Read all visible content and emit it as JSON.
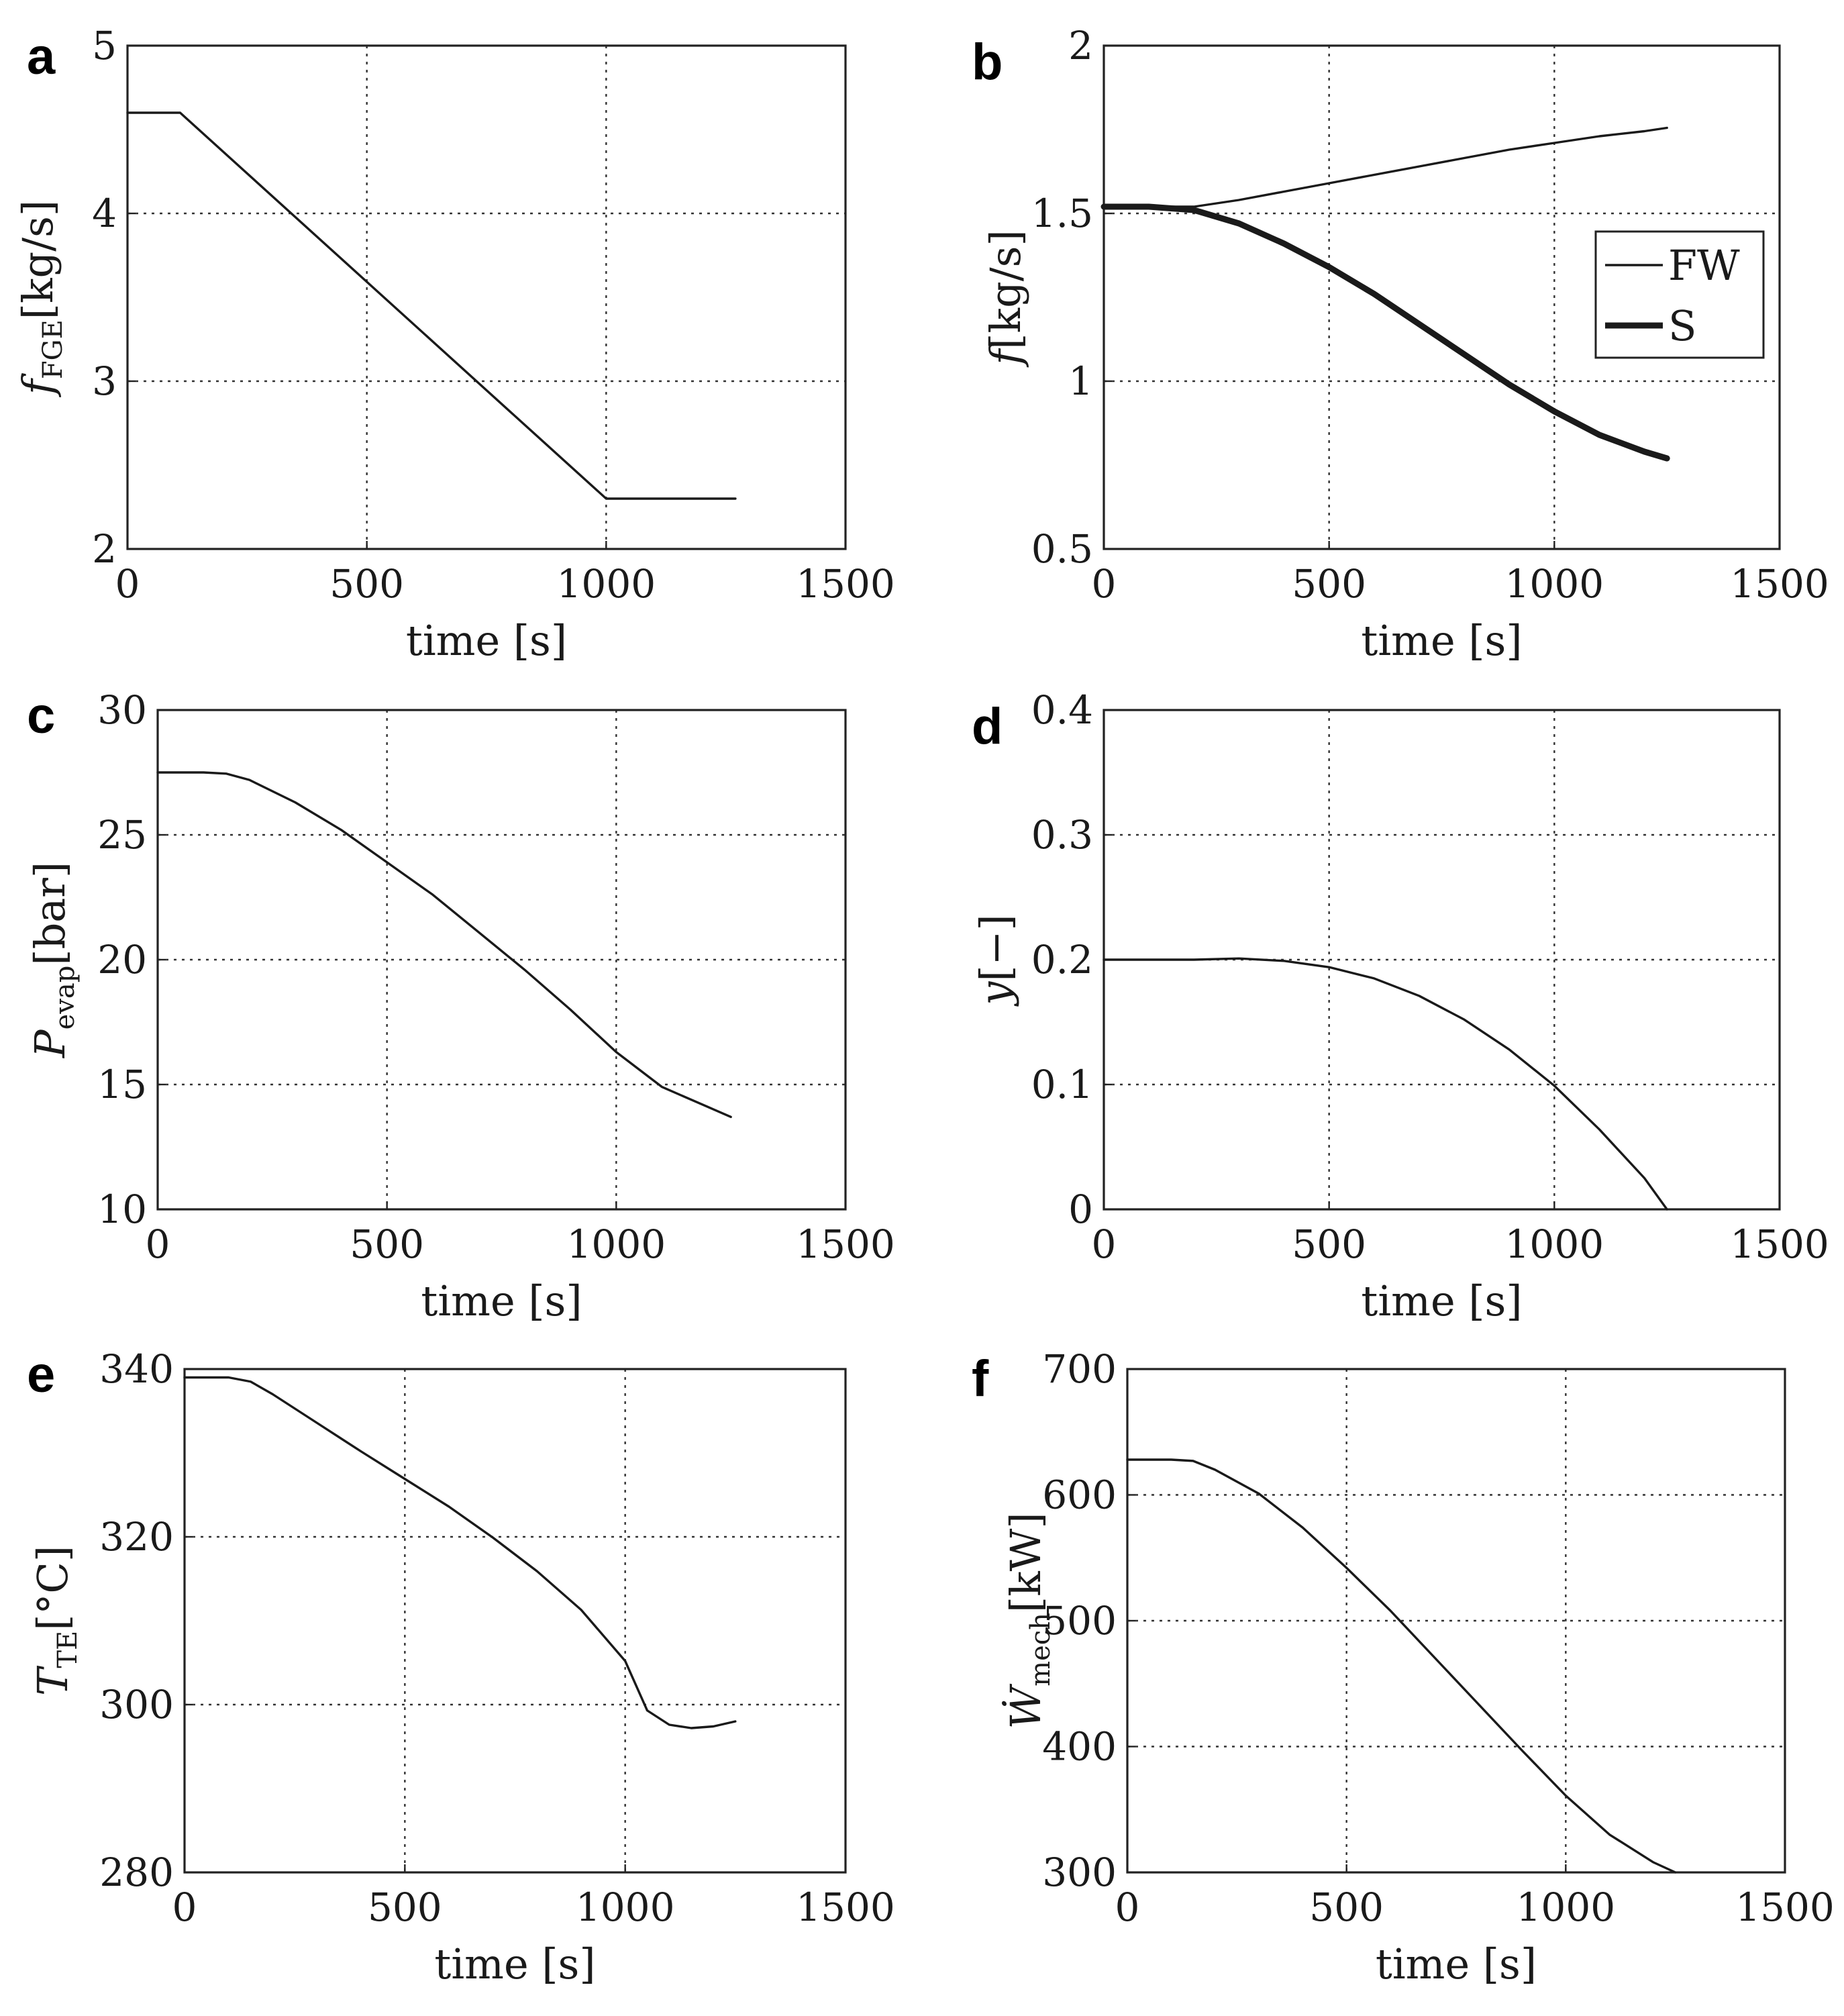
{
  "figure": {
    "shared_xlabel": "time [s]"
  },
  "chart_data": [
    {
      "id": "a",
      "panel_label": "a",
      "type": "line",
      "xlabel": "time [s]",
      "ylabel": {
        "base": "f",
        "sub": "FGE",
        "rest": "[kg/s]"
      },
      "xlim": [
        0,
        1500
      ],
      "ylim": [
        2,
        5
      ],
      "xticks": [
        0,
        500,
        1000,
        1500
      ],
      "yticks": [
        2,
        3,
        4,
        5
      ],
      "grid": true,
      "series": [
        {
          "name": "f_FGE",
          "weight": "thin",
          "x": [
            0,
            110,
            1000,
            1270
          ],
          "y": [
            4.6,
            4.6,
            2.3,
            2.3
          ]
        }
      ]
    },
    {
      "id": "b",
      "panel_label": "b",
      "type": "line",
      "xlabel": "time [s]",
      "ylabel": {
        "base": "f",
        "sub": "",
        "rest": "[kg/s]"
      },
      "xlim": [
        0,
        1500
      ],
      "ylim": [
        0.5,
        2
      ],
      "xticks": [
        0,
        500,
        1000,
        1500
      ],
      "yticks": [
        0.5,
        1,
        1.5,
        2
      ],
      "grid": true,
      "legend": {
        "position": "right",
        "entries": [
          "FW",
          "S"
        ]
      },
      "series": [
        {
          "name": "FW",
          "weight": "thin",
          "x": [
            0,
            100,
            200,
            300,
            400,
            500,
            600,
            700,
            800,
            900,
            1000,
            1100,
            1200,
            1250
          ],
          "y": [
            1.52,
            1.52,
            1.52,
            1.54,
            1.565,
            1.59,
            1.615,
            1.64,
            1.665,
            1.69,
            1.71,
            1.73,
            1.745,
            1.755
          ]
        },
        {
          "name": "S",
          "weight": "thick",
          "x": [
            0,
            100,
            200,
            300,
            400,
            500,
            600,
            700,
            800,
            900,
            1000,
            1100,
            1200,
            1250
          ],
          "y": [
            1.52,
            1.52,
            1.51,
            1.47,
            1.41,
            1.34,
            1.26,
            1.17,
            1.08,
            0.99,
            0.91,
            0.84,
            0.79,
            0.77
          ]
        }
      ]
    },
    {
      "id": "c",
      "panel_label": "c",
      "type": "line",
      "xlabel": "time [s]",
      "ylabel": {
        "base": "P",
        "sub": "evap",
        "rest": "[bar]"
      },
      "xlim": [
        0,
        1500
      ],
      "ylim": [
        10,
        30
      ],
      "xticks": [
        0,
        500,
        1000,
        1500
      ],
      "yticks": [
        10,
        15,
        20,
        25,
        30
      ],
      "grid": true,
      "series": [
        {
          "name": "P_evap",
          "weight": "thin",
          "x": [
            0,
            100,
            150,
            200,
            300,
            400,
            500,
            600,
            700,
            800,
            900,
            1000,
            1100,
            1200,
            1250
          ],
          "y": [
            27.5,
            27.5,
            27.45,
            27.2,
            26.3,
            25.2,
            23.9,
            22.6,
            21.1,
            19.6,
            18.0,
            16.3,
            14.9,
            14.1,
            13.7
          ]
        }
      ]
    },
    {
      "id": "d",
      "panel_label": "d",
      "type": "line",
      "xlabel": "time [s]",
      "ylabel": {
        "base": "y",
        "sub": "",
        "rest": "[−]"
      },
      "xlim": [
        0,
        1500
      ],
      "ylim": [
        0,
        0.4
      ],
      "xticks": [
        0,
        500,
        1000,
        1500
      ],
      "yticks": [
        0,
        0.1,
        0.2,
        0.3,
        0.4
      ],
      "grid": true,
      "series": [
        {
          "name": "y",
          "weight": "thin",
          "x": [
            0,
            100,
            200,
            300,
            400,
            500,
            600,
            700,
            800,
            900,
            1000,
            1100,
            1200,
            1250
          ],
          "y": [
            0.2,
            0.2,
            0.2,
            0.201,
            0.199,
            0.194,
            0.185,
            0.171,
            0.152,
            0.128,
            0.099,
            0.064,
            0.025,
            0.0
          ]
        }
      ]
    },
    {
      "id": "e",
      "panel_label": "e",
      "type": "line",
      "xlabel": "time [s]",
      "ylabel": {
        "base": "T",
        "sub": "TE",
        "rest": "[°C]"
      },
      "xlim": [
        0,
        1500
      ],
      "ylim": [
        280,
        340
      ],
      "xticks": [
        0,
        500,
        1000,
        1500
      ],
      "yticks": [
        280,
        300,
        320,
        340
      ],
      "grid": true,
      "series": [
        {
          "name": "T_TE",
          "weight": "thin",
          "x": [
            0,
            100,
            150,
            200,
            300,
            400,
            500,
            600,
            700,
            800,
            900,
            1000,
            1050,
            1100,
            1150,
            1200,
            1250
          ],
          "y": [
            339,
            339,
            338.5,
            337,
            333.6,
            330.2,
            326.9,
            323.6,
            319.9,
            315.9,
            311.3,
            305.2,
            299.3,
            297.6,
            297.2,
            297.4,
            298
          ]
        }
      ]
    },
    {
      "id": "f",
      "panel_label": "f",
      "type": "line",
      "xlabel": "time [s]",
      "ylabel": {
        "base": "Ẇ",
        "sub": "mech",
        "rest": "[kW]"
      },
      "xlim": [
        0,
        1500
      ],
      "ylim": [
        300,
        700
      ],
      "xticks": [
        0,
        500,
        1000,
        1500
      ],
      "yticks": [
        300,
        400,
        500,
        600,
        700
      ],
      "grid": true,
      "series": [
        {
          "name": "W_mech",
          "weight": "thin",
          "x": [
            0,
            100,
            150,
            200,
            300,
            400,
            500,
            600,
            700,
            800,
            900,
            1000,
            1100,
            1200,
            1250
          ],
          "y": [
            628,
            628,
            627,
            620,
            601,
            574,
            542,
            508,
            471,
            434,
            397,
            361,
            330,
            308,
            300
          ]
        }
      ]
    }
  ]
}
